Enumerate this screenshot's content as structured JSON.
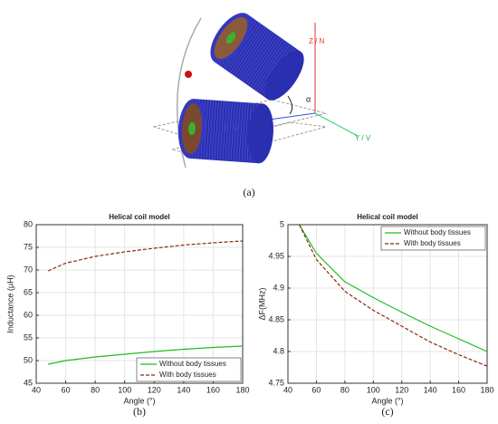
{
  "diagram": {
    "labels": {
      "z": "Z / N",
      "y": "Y / V",
      "x": "X / U",
      "angle": "α"
    },
    "caption": "(a)"
  },
  "chart_data": [
    {
      "type": "line",
      "title": "Helical coil model",
      "xlabel": "Angle (°)",
      "ylabel": "Inductance (μH)",
      "caption": "(b)",
      "x": [
        48,
        60,
        80,
        100,
        120,
        140,
        160,
        180
      ],
      "series": [
        {
          "name": "Without body tissues",
          "color": "#22bb22",
          "linestyle": "solid",
          "values": [
            49.2,
            50.0,
            50.8,
            51.4,
            52.0,
            52.5,
            52.9,
            53.2
          ]
        },
        {
          "name": "With body tissues",
          "color": "#8b2a10",
          "linestyle": "dashed",
          "values": [
            69.8,
            71.5,
            73.0,
            74.0,
            74.8,
            75.5,
            76.0,
            76.4
          ]
        }
      ],
      "xlim": [
        40,
        180
      ],
      "xticks": [
        40,
        60,
        80,
        100,
        120,
        140,
        160,
        180
      ],
      "ylim": [
        45,
        80
      ],
      "yticks": [
        45,
        50,
        55,
        60,
        65,
        70,
        75,
        80
      ],
      "grid": true,
      "legend": "lower right"
    },
    {
      "type": "line",
      "title": "Helical coil model",
      "xlabel": "Angle (°)",
      "ylabel": "ΔF(MHz)",
      "caption": "(c)",
      "x": [
        48,
        60,
        80,
        100,
        120,
        140,
        160,
        180
      ],
      "series": [
        {
          "name": "Without body tissues",
          "color": "#22bb22",
          "linestyle": "solid",
          "values": [
            5.0,
            4.955,
            4.91,
            4.885,
            4.862,
            4.84,
            4.82,
            4.8
          ]
        },
        {
          "name": "With body tissues",
          "color": "#8b2a10",
          "linestyle": "dashed",
          "values": [
            5.0,
            4.945,
            4.895,
            4.865,
            4.84,
            4.815,
            4.795,
            4.777
          ]
        }
      ],
      "xlim": [
        40,
        180
      ],
      "xticks": [
        40,
        60,
        80,
        100,
        120,
        140,
        160,
        180
      ],
      "ylim": [
        4.75,
        5
      ],
      "yticks": [
        4.75,
        4.8,
        4.85,
        4.9,
        4.95,
        5
      ],
      "grid": true,
      "legend": "upper right"
    }
  ]
}
